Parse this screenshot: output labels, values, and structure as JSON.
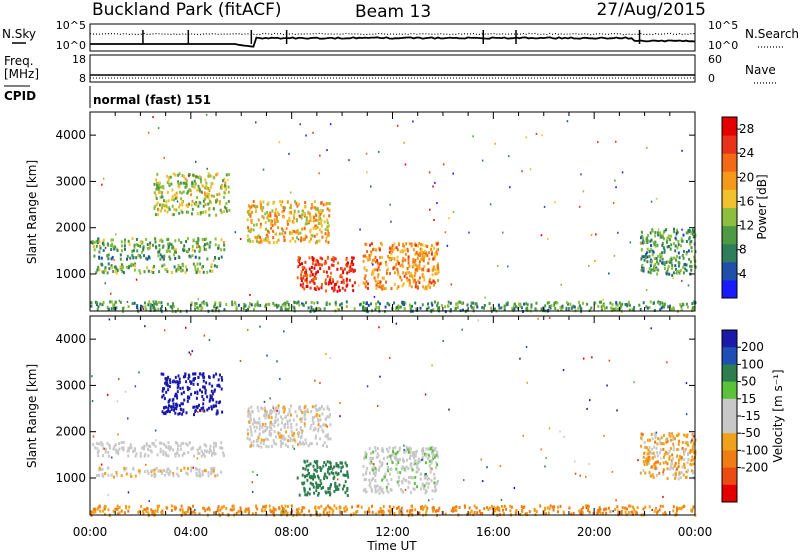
{
  "header": {
    "radar": "Buckland Park (fitACF)",
    "beam": "Beam 13",
    "date": "27/Aug/2015"
  },
  "noise_panel": {
    "left_label": "N.Sky",
    "right_label": "N.Search",
    "left_ticks": [
      "10^5",
      "10^0"
    ],
    "right_ticks": [
      "10^5",
      "10^0"
    ]
  },
  "freq_panel": {
    "left_label_line1": "Freq.",
    "left_label_line2": "[MHz]",
    "right_label": "Nave",
    "left_ticks": [
      "18",
      "8"
    ],
    "right_ticks": [
      "60",
      "0"
    ]
  },
  "cpid": {
    "label": "CPID",
    "text": "normal (fast) 151"
  },
  "colors": {
    "power_scale": [
      "#1a1aff",
      "#1f4fa8",
      "#2e7d5b",
      "#4e9a44",
      "#8cbf3f",
      "#f2c12e",
      "#f39a1b",
      "#f26a14",
      "#e8321a",
      "#e50000"
    ],
    "velocity_scale": [
      "#1a1aa8",
      "#1f4fb5",
      "#2e7d4f",
      "#59c23a",
      "#c8c8c8",
      "#c8c8c8",
      "#f0a11b",
      "#f07d14",
      "#ec4b14",
      "#e50000"
    ]
  },
  "chart_data": [
    {
      "type": "heatmap",
      "name": "power",
      "ylabel": "Slant Range [km]",
      "ylim": [
        200,
        4500
      ],
      "yticks": [
        "1000",
        "2000",
        "3000",
        "4000"
      ],
      "colorbar": {
        "label": "Power [dB]",
        "ticks": [
          "4",
          "8",
          "12",
          "16",
          "20",
          "24",
          "28"
        ],
        "range": [
          0,
          30
        ]
      },
      "xlim": [
        0,
        24
      ],
      "regions": [
        {
          "t": [
            0.0,
            24.0
          ],
          "r": [
            220,
            430
          ],
          "val": 10
        },
        {
          "t": [
            0.0,
            5.3
          ],
          "r": [
            1500,
            1800
          ],
          "val": 11
        },
        {
          "t": [
            0.0,
            5.3
          ],
          "r": [
            1350,
            1450
          ],
          "val": 8
        },
        {
          "t": [
            0.2,
            5.2
          ],
          "r": [
            1050,
            1250
          ],
          "val": 12
        },
        {
          "t": [
            2.5,
            5.5
          ],
          "r": [
            2300,
            3200
          ],
          "val": 14
        },
        {
          "t": [
            6.2,
            9.5
          ],
          "r": [
            1700,
            2600
          ],
          "val": 18
        },
        {
          "t": [
            8.2,
            10.5
          ],
          "r": [
            650,
            1400
          ],
          "val": 26
        },
        {
          "t": [
            10.8,
            13.8
          ],
          "r": [
            700,
            1700
          ],
          "val": 20
        },
        {
          "t": [
            21.8,
            24.0
          ],
          "r": [
            1000,
            2000
          ],
          "val": 10
        }
      ]
    },
    {
      "type": "heatmap",
      "name": "velocity",
      "xlabel": "Time UT",
      "ylabel": "Slant Range [km]",
      "ylim": [
        200,
        4500
      ],
      "yticks": [
        "1000",
        "2000",
        "3000",
        "4000"
      ],
      "xticks": [
        "00:00",
        "04:00",
        "08:00",
        "12:00",
        "16:00",
        "20:00",
        "00:00"
      ],
      "colorbar": {
        "label": "Velocity [m s⁻¹]",
        "ticks": [
          "200",
          "100",
          "50",
          "15",
          "-15",
          "-50",
          "-100",
          "-200"
        ]
      },
      "xlim": [
        0,
        24
      ],
      "regions": [
        {
          "t": [
            0.0,
            24.0
          ],
          "r": [
            220,
            430
          ],
          "val": -30
        },
        {
          "t": [
            0.0,
            5.3
          ],
          "r": [
            1500,
            1800
          ],
          "val": 0
        },
        {
          "t": [
            0.2,
            5.2
          ],
          "r": [
            1050,
            1250
          ],
          "val": -10
        },
        {
          "t": [
            2.8,
            5.2
          ],
          "r": [
            2400,
            3300
          ],
          "val": 200
        },
        {
          "t": [
            6.2,
            9.5
          ],
          "r": [
            1700,
            2600
          ],
          "val": -5
        },
        {
          "t": [
            8.2,
            10.2
          ],
          "r": [
            650,
            1400
          ],
          "val": 45
        },
        {
          "t": [
            10.8,
            13.8
          ],
          "r": [
            700,
            1700
          ],
          "val": 5
        },
        {
          "t": [
            21.8,
            24.0
          ],
          "r": [
            1000,
            2000
          ],
          "val": -20
        }
      ]
    }
  ]
}
